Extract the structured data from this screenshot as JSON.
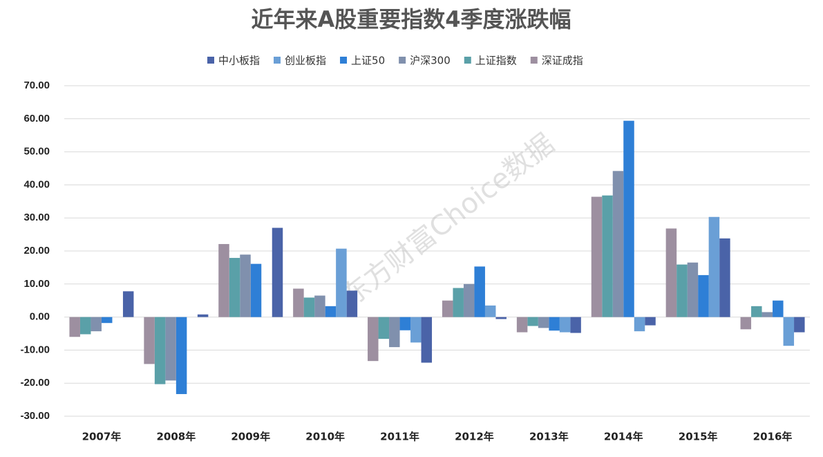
{
  "chart_data": {
    "type": "bar",
    "title": "近年来A股重要指数4季度涨跌幅",
    "watermark": "东方财富Choice数据",
    "categories": [
      "2007年",
      "2008年",
      "2009年",
      "2010年",
      "2011年",
      "2012年",
      "2013年",
      "2014年",
      "2015年",
      "2016年"
    ],
    "series": [
      {
        "name": "中小板指",
        "color": "#4a63a8",
        "values": [
          7.8,
          0.8,
          27.0,
          8.0,
          -13.8,
          -0.6,
          -4.8,
          -2.5,
          23.8,
          -4.6
        ]
      },
      {
        "name": "创业板指",
        "color": "#6a9fd6",
        "values": [
          null,
          null,
          null,
          20.7,
          -7.7,
          3.5,
          -4.6,
          -4.3,
          30.3,
          -8.7
        ]
      },
      {
        "name": "上证50",
        "color": "#2e7fd6",
        "values": [
          -1.8,
          -23.3,
          16.1,
          3.3,
          -4.0,
          15.3,
          -4.1,
          59.4,
          12.7,
          5.0
        ]
      },
      {
        "name": "沪深300",
        "color": "#8090ad",
        "values": [
          -4.3,
          -19.2,
          18.9,
          6.5,
          -9.1,
          10.0,
          -3.3,
          44.2,
          16.5,
          1.5
        ]
      },
      {
        "name": "上证指数",
        "color": "#5aa0a8",
        "values": [
          -5.2,
          -20.3,
          17.9,
          5.9,
          -6.6,
          8.8,
          -2.7,
          36.8,
          15.9,
          3.3
        ]
      },
      {
        "name": "深证成指",
        "color": "#9d8fa0",
        "values": [
          -6.0,
          -14.2,
          22.1,
          8.6,
          -13.3,
          5.0,
          -4.6,
          36.4,
          26.8,
          -3.7
        ]
      }
    ],
    "ylim": [
      -30,
      70
    ],
    "yticks": [
      {
        "value": -30,
        "label": "-30.00"
      },
      {
        "value": -20,
        "label": "-20.00"
      },
      {
        "value": -10,
        "label": "-10.00"
      },
      {
        "value": 0,
        "label": "0.00"
      },
      {
        "value": 10,
        "label": "10.00"
      },
      {
        "value": 20,
        "label": "20.00"
      },
      {
        "value": 30,
        "label": "30.00"
      },
      {
        "value": 40,
        "label": "40.00"
      },
      {
        "value": 50,
        "label": "50.00"
      },
      {
        "value": 60,
        "label": "60.00"
      },
      {
        "value": 70,
        "label": "70.00"
      }
    ],
    "grid": true
  }
}
